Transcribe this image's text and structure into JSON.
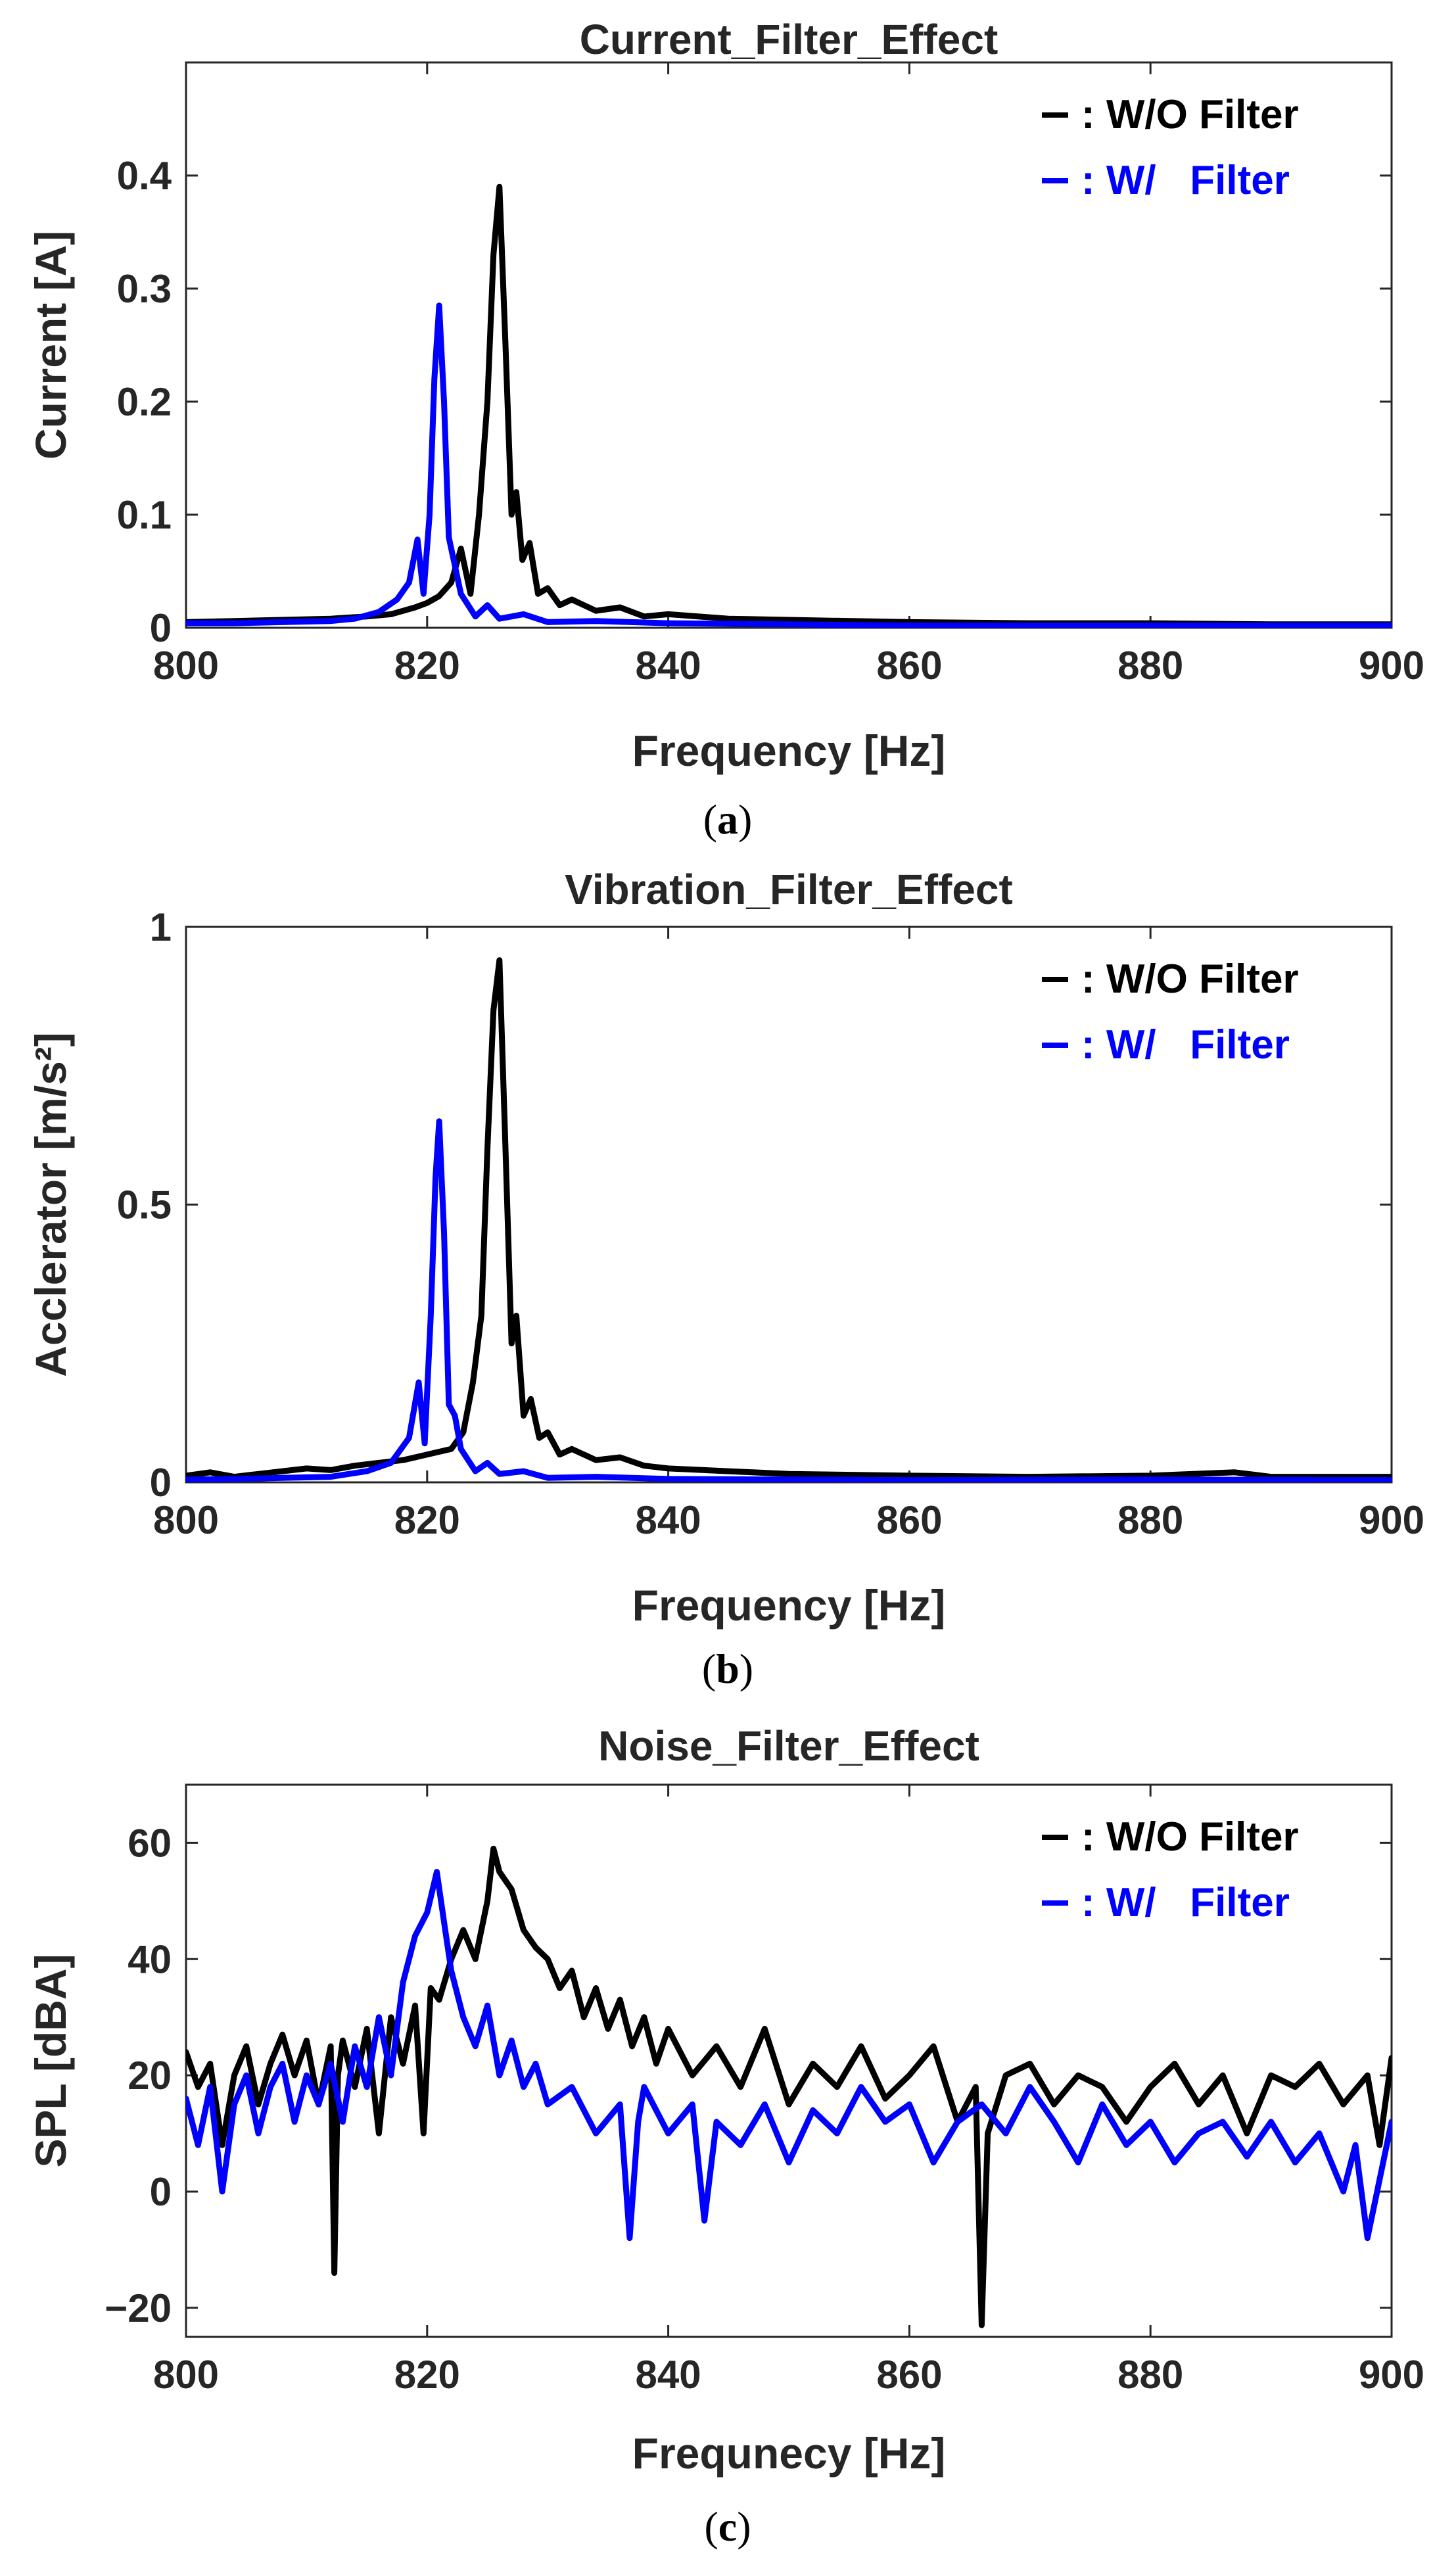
{
  "chart_data": [
    {
      "type": "line",
      "title": "Current_Filter_Effect",
      "xlabel": "Frequency [Hz]",
      "ylabel": "Current [A]",
      "xlim": [
        800,
        900
      ],
      "ylim": [
        0,
        0.5
      ],
      "xticks": [
        800,
        820,
        840,
        860,
        880,
        900
      ],
      "xtick_labels": [
        "800",
        "820",
        "840",
        "860",
        "880",
        "900"
      ],
      "yticks": [
        0,
        0.1,
        0.2,
        0.3,
        0.4
      ],
      "ytick_labels": [
        "0",
        "0.1",
        "0.2",
        "0.3",
        "0.4"
      ],
      "grid": false,
      "legend_position": "top-right",
      "caption": "a",
      "series": [
        {
          "name": ": W/O Filter",
          "color": "#000000",
          "x": [
            800,
            804,
            808,
            812,
            815,
            817,
            819,
            820,
            821,
            822,
            822.8,
            823.6,
            824.3,
            825,
            825.5,
            826,
            826.5,
            827,
            827.4,
            827.9,
            828.5,
            829.2,
            830,
            831,
            832,
            834,
            836,
            838,
            840,
            845,
            850,
            860,
            870,
            880,
            890,
            900
          ],
          "y": [
            0.005,
            0.006,
            0.007,
            0.008,
            0.01,
            0.012,
            0.018,
            0.022,
            0.028,
            0.04,
            0.07,
            0.03,
            0.1,
            0.2,
            0.33,
            0.39,
            0.25,
            0.1,
            0.12,
            0.06,
            0.075,
            0.03,
            0.035,
            0.02,
            0.025,
            0.015,
            0.018,
            0.01,
            0.012,
            0.008,
            0.007,
            0.005,
            0.004,
            0.004,
            0.003,
            0.003
          ]
        },
        {
          "name": ": W/   Filter",
          "color": "#0000ff",
          "x": [
            800,
            804,
            808,
            812,
            814,
            816,
            817.5,
            818.5,
            819.2,
            819.7,
            820.2,
            820.6,
            821,
            821.4,
            821.8,
            822.3,
            822.8,
            823.4,
            824,
            825,
            826,
            828,
            830,
            834,
            840,
            850,
            860,
            880,
            900
          ],
          "y": [
            0.004,
            0.004,
            0.005,
            0.006,
            0.008,
            0.014,
            0.025,
            0.04,
            0.078,
            0.03,
            0.1,
            0.22,
            0.285,
            0.2,
            0.08,
            0.055,
            0.03,
            0.02,
            0.01,
            0.02,
            0.008,
            0.012,
            0.005,
            0.006,
            0.004,
            0.003,
            0.002,
            0.002,
            0.002
          ]
        }
      ]
    },
    {
      "type": "line",
      "title": "Vibration_Filter_Effect",
      "xlabel": "Frequency [Hz]",
      "ylabel": "Acclerator [m/s²]",
      "xlim": [
        800,
        900
      ],
      "ylim": [
        0,
        1
      ],
      "xticks": [
        800,
        820,
        840,
        860,
        880,
        900
      ],
      "xtick_labels": [
        "800",
        "820",
        "840",
        "860",
        "880",
        "900"
      ],
      "yticks": [
        0,
        0.5,
        1
      ],
      "ytick_labels": [
        "0",
        "0.5",
        "1"
      ],
      "grid": false,
      "legend_position": "top-right",
      "caption": "b",
      "series": [
        {
          "name": ": W/O Filter",
          "color": "#000000",
          "x": [
            800,
            802,
            804,
            806,
            808,
            810,
            812,
            814,
            816,
            818,
            820,
            822,
            823,
            823.8,
            824.5,
            825,
            825.5,
            826,
            826.5,
            827,
            827.4,
            828,
            828.6,
            829.3,
            830,
            831,
            832,
            834,
            836,
            838,
            840,
            845,
            850,
            860,
            870,
            880,
            887,
            890,
            900
          ],
          "y": [
            0.012,
            0.018,
            0.01,
            0.015,
            0.02,
            0.025,
            0.022,
            0.03,
            0.035,
            0.04,
            0.05,
            0.06,
            0.09,
            0.18,
            0.3,
            0.6,
            0.85,
            0.94,
            0.6,
            0.25,
            0.3,
            0.12,
            0.15,
            0.08,
            0.09,
            0.05,
            0.06,
            0.04,
            0.045,
            0.03,
            0.025,
            0.02,
            0.015,
            0.012,
            0.01,
            0.012,
            0.018,
            0.01,
            0.01
          ]
        },
        {
          "name": ": W/   Filter",
          "color": "#0000ff",
          "x": [
            800,
            804,
            808,
            812,
            815,
            817,
            818.5,
            819.3,
            819.8,
            820.3,
            820.7,
            821,
            821.4,
            821.8,
            822.3,
            822.8,
            823.4,
            824,
            825,
            826,
            828,
            830,
            834,
            840,
            850,
            860,
            880,
            900
          ],
          "y": [
            0.005,
            0.006,
            0.008,
            0.01,
            0.02,
            0.035,
            0.08,
            0.18,
            0.07,
            0.3,
            0.55,
            0.65,
            0.45,
            0.14,
            0.12,
            0.06,
            0.04,
            0.02,
            0.035,
            0.015,
            0.02,
            0.008,
            0.01,
            0.006,
            0.005,
            0.004,
            0.005,
            0.004
          ]
        }
      ]
    },
    {
      "type": "line",
      "title": "Noise_Filter_Effect",
      "xlabel": "Frequnecy [Hz]",
      "ylabel": "SPL [dBA]",
      "xlim": [
        800,
        900
      ],
      "ylim": [
        -25,
        70
      ],
      "xticks": [
        800,
        820,
        840,
        860,
        880,
        900
      ],
      "xtick_labels": [
        "800",
        "820",
        "840",
        "860",
        "880",
        "900"
      ],
      "yticks": [
        -20,
        0,
        20,
        40,
        60
      ],
      "ytick_labels": [
        "−20",
        "0",
        "20",
        "40",
        "60"
      ],
      "grid": false,
      "legend_position": "top-right",
      "caption": "c",
      "series": [
        {
          "name": ": W/O Filter",
          "color": "#000000",
          "x": [
            800,
            801,
            802,
            803,
            804,
            805,
            806,
            807,
            808,
            809,
            810,
            811,
            812,
            812.3,
            812.6,
            813,
            814,
            815,
            816,
            817,
            818,
            819,
            819.7,
            820.3,
            821,
            822,
            823,
            824,
            825,
            825.5,
            826,
            827,
            828,
            829,
            830,
            831,
            832,
            833,
            834,
            835,
            836,
            837,
            838,
            839,
            840,
            842,
            844,
            846,
            848,
            850,
            852,
            854,
            856,
            858,
            860,
            862,
            864,
            865.5,
            866,
            866.5,
            868,
            870,
            872,
            874,
            876,
            878,
            880,
            882,
            884,
            886,
            888,
            890,
            892,
            894,
            896,
            898,
            899,
            900
          ],
          "y": [
            24,
            18,
            22,
            8,
            20,
            25,
            15,
            22,
            27,
            20,
            26,
            15,
            25,
            -14,
            20,
            26,
            18,
            28,
            10,
            30,
            22,
            32,
            10,
            35,
            33,
            40,
            45,
            40,
            50,
            59,
            55,
            52,
            45,
            42,
            40,
            35,
            38,
            30,
            35,
            28,
            33,
            25,
            30,
            22,
            28,
            20,
            25,
            18,
            28,
            15,
            22,
            18,
            25,
            16,
            20,
            25,
            12,
            18,
            -23,
            10,
            20,
            22,
            15,
            20,
            18,
            12,
            18,
            22,
            15,
            20,
            10,
            20,
            18,
            22,
            15,
            20,
            8,
            23
          ]
        },
        {
          "name": ": W/   Filter",
          "color": "#0000ff",
          "x": [
            800,
            801,
            802,
            803,
            804,
            805,
            806,
            807,
            808,
            809,
            810,
            811,
            812,
            813,
            814,
            815,
            816,
            817,
            818,
            819,
            820,
            820.8,
            821.5,
            822,
            823,
            824,
            825,
            826,
            827,
            828,
            829,
            830,
            832,
            834,
            836,
            836.8,
            837.5,
            838,
            840,
            842,
            843,
            844,
            846,
            848,
            850,
            852,
            854,
            856,
            858,
            860,
            862,
            864,
            866,
            868,
            870,
            872,
            874,
            876,
            878,
            880,
            882,
            884,
            886,
            888,
            890,
            892,
            894,
            896,
            897,
            898,
            900
          ],
          "y": [
            16,
            8,
            18,
            0,
            15,
            20,
            10,
            18,
            22,
            12,
            20,
            15,
            22,
            12,
            25,
            18,
            30,
            20,
            36,
            44,
            48,
            55,
            45,
            38,
            30,
            25,
            32,
            20,
            26,
            18,
            22,
            15,
            18,
            10,
            15,
            -8,
            12,
            18,
            10,
            15,
            -5,
            12,
            8,
            15,
            5,
            14,
            10,
            18,
            12,
            15,
            5,
            12,
            15,
            10,
            18,
            12,
            5,
            15,
            8,
            12,
            5,
            10,
            12,
            6,
            12,
            5,
            10,
            0,
            8,
            -8,
            12
          ]
        }
      ]
    }
  ]
}
